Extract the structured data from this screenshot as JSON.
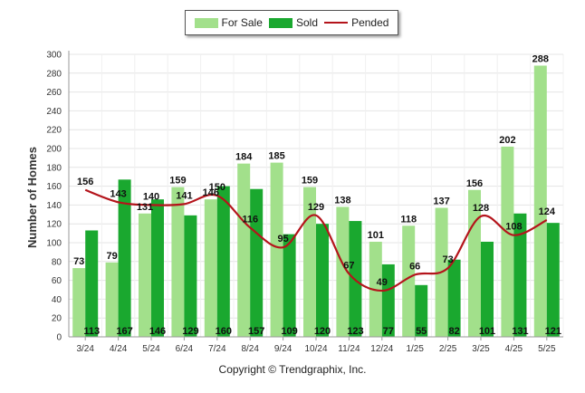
{
  "legend": {
    "for_sale": "For Sale",
    "sold": "Sold",
    "pended": "Pended"
  },
  "copyright": "Copyright © Trendgraphix, Inc.",
  "colors": {
    "for_sale": "#a2e08b",
    "sold": "#1aa82f",
    "pended": "#b4141b"
  },
  "chart_data": {
    "type": "bar",
    "ylabel": "Number of Homes",
    "ylim": [
      0,
      300
    ],
    "yticks": [
      0,
      20,
      40,
      60,
      80,
      100,
      120,
      140,
      160,
      180,
      200,
      220,
      240,
      260,
      280,
      300
    ],
    "grid": true,
    "legend_position": "top-center",
    "categories": [
      "3/24",
      "4/24",
      "5/24",
      "6/24",
      "7/24",
      "8/24",
      "9/24",
      "10/24",
      "11/24",
      "12/24",
      "1/25",
      "2/25",
      "3/25",
      "4/25",
      "5/25"
    ],
    "series": [
      {
        "name": "For Sale",
        "type": "bar",
        "values": [
          73,
          79,
          131,
          159,
          146,
          184,
          185,
          159,
          138,
          101,
          118,
          137,
          156,
          202,
          288
        ]
      },
      {
        "name": "Sold",
        "type": "bar",
        "values": [
          113,
          167,
          146,
          129,
          160,
          157,
          109,
          120,
          123,
          77,
          55,
          82,
          101,
          131,
          121
        ]
      },
      {
        "name": "Pended",
        "type": "line",
        "values": [
          156,
          143,
          140,
          141,
          150,
          116,
          95,
          129,
          67,
          49,
          66,
          73,
          128,
          108,
          124
        ]
      }
    ]
  }
}
